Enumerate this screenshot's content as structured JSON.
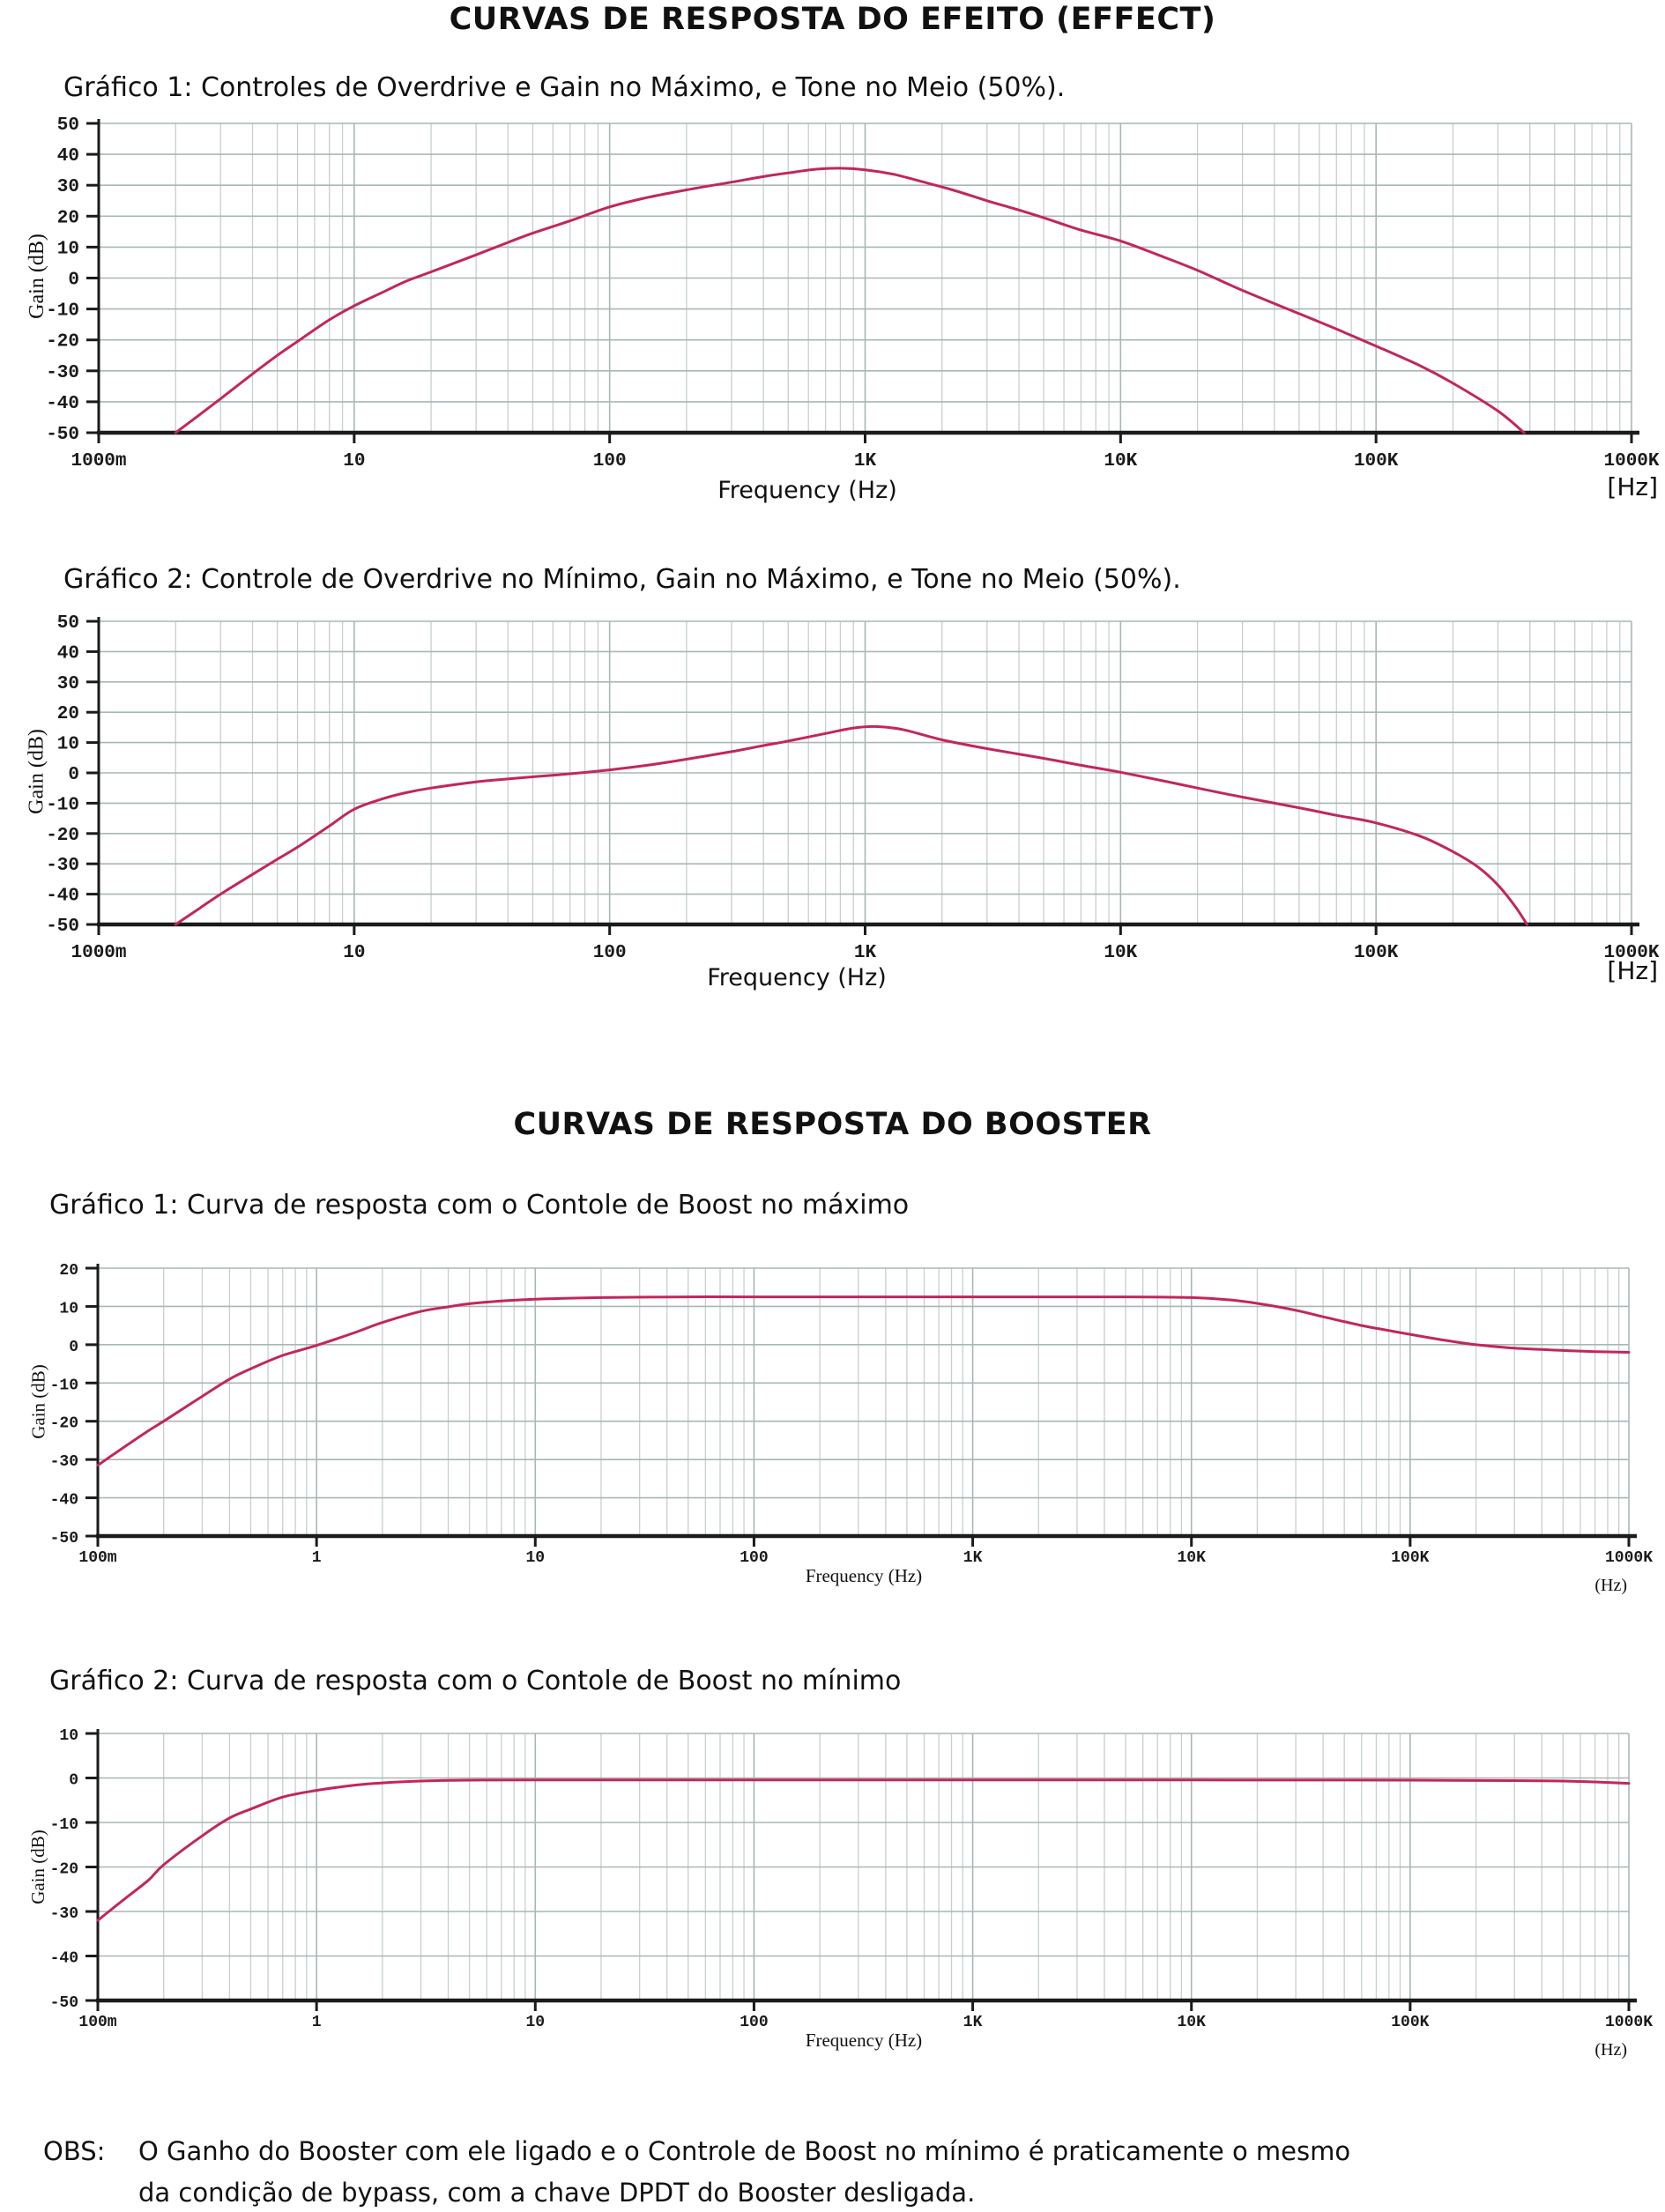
{
  "titles": {
    "effect": "CURVAS DE RESPOSTA DO EFEITO (EFFECT)",
    "booster": "CURVAS DE RESPOSTA DO BOOSTER"
  },
  "obs": {
    "label": "OBS:",
    "line1": "O Ganho do Booster com ele ligado e o Controle de Boost no mínimo é praticamente o mesmo",
    "line2": "da condição de bypass, com a chave DPDT do Booster desligada."
  },
  "colors": {
    "curve": "#c2265c",
    "grid_minor": "#c6d0ce",
    "grid_major": "#a9b7b5",
    "axis": "#1b1b1b",
    "text": "#111111"
  },
  "chart_data": [
    {
      "type": "line",
      "caption": "Gráfico 1: Controles de Overdrive e Gain no Máximo, e Tone no Meio (50%).",
      "ylabel": "Gain (dB)",
      "xlabel": "Frequency (Hz)",
      "x_unit": "[Hz]",
      "ylim": [
        -50,
        50
      ],
      "xlim_hz": [
        1,
        1000000
      ],
      "grid": true,
      "yticks": [
        {
          "db": 50,
          "label": "50"
        },
        {
          "db": 40,
          "label": "40"
        },
        {
          "db": 30,
          "label": "30"
        },
        {
          "db": 20,
          "label": "20"
        },
        {
          "db": 10,
          "label": "10"
        },
        {
          "db": 0,
          "label": "0"
        },
        {
          "db": -10,
          "label": "-10"
        },
        {
          "db": -20,
          "label": "-20"
        },
        {
          "db": -30,
          "label": "-30"
        },
        {
          "db": -40,
          "label": "-40"
        },
        {
          "db": -50,
          "label": "-50"
        }
      ],
      "xticks": [
        {
          "hz": 1,
          "label": "1000m"
        },
        {
          "hz": 10,
          "label": "10"
        },
        {
          "hz": 100,
          "label": "100"
        },
        {
          "hz": 1000,
          "label": "1K"
        },
        {
          "hz": 10000,
          "label": "10K"
        },
        {
          "hz": 100000,
          "label": "100K"
        },
        {
          "hz": 1000000,
          "label": "1000K"
        }
      ],
      "series": [
        {
          "name": "gain-response",
          "points": [
            [
              2,
              -50
            ],
            [
              2.5,
              -44
            ],
            [
              3,
              -39
            ],
            [
              4,
              -31
            ],
            [
              5,
              -25
            ],
            [
              6,
              -20.5
            ],
            [
              8,
              -13.5
            ],
            [
              10,
              -9
            ],
            [
              13,
              -4.5
            ],
            [
              16,
              -1
            ],
            [
              20,
              2
            ],
            [
              30,
              7.5
            ],
            [
              40,
              11.5
            ],
            [
              50,
              14.5
            ],
            [
              70,
              18.5
            ],
            [
              100,
              23
            ],
            [
              140,
              26
            ],
            [
              200,
              28.5
            ],
            [
              300,
              31
            ],
            [
              400,
              32.8
            ],
            [
              500,
              34
            ],
            [
              650,
              35.2
            ],
            [
              800,
              35.5
            ],
            [
              1000,
              35
            ],
            [
              1300,
              33.5
            ],
            [
              1700,
              31
            ],
            [
              2200,
              28.5
            ],
            [
              3000,
              25
            ],
            [
              4000,
              22
            ],
            [
              5000,
              19.5
            ],
            [
              7000,
              15.5
            ],
            [
              10000,
              12
            ],
            [
              14000,
              7.5
            ],
            [
              20000,
              2.5
            ],
            [
              30000,
              -4
            ],
            [
              50000,
              -11.5
            ],
            [
              70000,
              -16.5
            ],
            [
              100000,
              -22
            ],
            [
              150000,
              -28.5
            ],
            [
              200000,
              -34
            ],
            [
              300000,
              -43
            ],
            [
              380000,
              -50
            ]
          ]
        }
      ]
    },
    {
      "type": "line",
      "caption": "Gráfico 2: Controle de Overdrive no Mínimo, Gain no Máximo, e Tone no Meio (50%).",
      "ylabel": "Gain (dB)",
      "xlabel": "Frequency (Hz)",
      "x_unit": "[Hz]",
      "ylim": [
        -50,
        50
      ],
      "xlim_hz": [
        1,
        1000000
      ],
      "grid": true,
      "yticks": [
        {
          "db": 50,
          "label": "50"
        },
        {
          "db": 40,
          "label": "40"
        },
        {
          "db": 30,
          "label": "30"
        },
        {
          "db": 20,
          "label": "20"
        },
        {
          "db": 10,
          "label": "10"
        },
        {
          "db": 0,
          "label": "0"
        },
        {
          "db": -10,
          "label": "-10"
        },
        {
          "db": -20,
          "label": "-20"
        },
        {
          "db": -30,
          "label": "-30"
        },
        {
          "db": -40,
          "label": "-40"
        },
        {
          "db": -50,
          "label": "-50"
        }
      ],
      "xticks": [
        {
          "hz": 1,
          "label": "1000m"
        },
        {
          "hz": 10,
          "label": "10"
        },
        {
          "hz": 100,
          "label": "100"
        },
        {
          "hz": 1000,
          "label": "1K"
        },
        {
          "hz": 10000,
          "label": "10K"
        },
        {
          "hz": 100000,
          "label": "100K"
        },
        {
          "hz": 1000000,
          "label": "1000K"
        }
      ],
      "series": [
        {
          "name": "gain-response",
          "points": [
            [
              2,
              -50
            ],
            [
              2.5,
              -44.5
            ],
            [
              3,
              -40
            ],
            [
              4,
              -33.5
            ],
            [
              5,
              -28.5
            ],
            [
              6,
              -24.5
            ],
            [
              8,
              -17.5
            ],
            [
              10,
              -12
            ],
            [
              13,
              -8.5
            ],
            [
              16,
              -6.5
            ],
            [
              20,
              -5
            ],
            [
              30,
              -3
            ],
            [
              40,
              -2
            ],
            [
              50,
              -1.3
            ],
            [
              70,
              -0.3
            ],
            [
              100,
              1
            ],
            [
              140,
              2.5
            ],
            [
              200,
              4.5
            ],
            [
              300,
              7
            ],
            [
              400,
              9
            ],
            [
              500,
              10.5
            ],
            [
              700,
              13
            ],
            [
              900,
              14.8
            ],
            [
              1100,
              15.3
            ],
            [
              1400,
              14.3
            ],
            [
              2000,
              10.9
            ],
            [
              3000,
              8
            ],
            [
              5000,
              4.8
            ],
            [
              7000,
              2.5
            ],
            [
              10000,
              0.2
            ],
            [
              15000,
              -2.8
            ],
            [
              20000,
              -5
            ],
            [
              30000,
              -8
            ],
            [
              50000,
              -11.5
            ],
            [
              70000,
              -14
            ],
            [
              100000,
              -16.5
            ],
            [
              150000,
              -21
            ],
            [
              200000,
              -26
            ],
            [
              250000,
              -31
            ],
            [
              300000,
              -37
            ],
            [
              350000,
              -44
            ],
            [
              390000,
              -50
            ]
          ]
        }
      ]
    },
    {
      "type": "line",
      "caption": "Gráfico 1: Curva de resposta com o Contole de Boost no máximo",
      "ylabel": "Gain (dB)",
      "xlabel": "Frequency (Hz)",
      "x_unit": "(Hz)",
      "ylim": [
        -50,
        20
      ],
      "xlim_hz": [
        0.1,
        1000000
      ],
      "grid": true,
      "yticks": [
        {
          "db": 20,
          "label": "20"
        },
        {
          "db": 10,
          "label": "10"
        },
        {
          "db": 0,
          "label": "0"
        },
        {
          "db": -10,
          "label": "-10"
        },
        {
          "db": -20,
          "label": "-20"
        },
        {
          "db": -30,
          "label": "-30"
        },
        {
          "db": -40,
          "label": "-40"
        },
        {
          "db": -50,
          "label": "-50"
        }
      ],
      "xticks": [
        {
          "hz": 0.1,
          "label": "100m"
        },
        {
          "hz": 1,
          "label": "1"
        },
        {
          "hz": 10,
          "label": "10"
        },
        {
          "hz": 100,
          "label": "100"
        },
        {
          "hz": 1000,
          "label": "1K"
        },
        {
          "hz": 10000,
          "label": "10K"
        },
        {
          "hz": 100000,
          "label": "100K"
        },
        {
          "hz": 1000000,
          "label": "1000K"
        }
      ],
      "series": [
        {
          "name": "boost-max",
          "points": [
            [
              0.1,
              -31.5
            ],
            [
              0.13,
              -27
            ],
            [
              0.17,
              -22.5
            ],
            [
              0.2,
              -20
            ],
            [
              0.3,
              -13.5
            ],
            [
              0.4,
              -9
            ],
            [
              0.5,
              -6.3
            ],
            [
              0.7,
              -2.8
            ],
            [
              1,
              -0.2
            ],
            [
              1.5,
              3.2
            ],
            [
              2,
              5.8
            ],
            [
              3,
              8.7
            ],
            [
              4,
              9.9
            ],
            [
              5,
              10.7
            ],
            [
              7,
              11.4
            ],
            [
              10,
              11.9
            ],
            [
              20,
              12.3
            ],
            [
              50,
              12.5
            ],
            [
              100,
              12.5
            ],
            [
              1000,
              12.5
            ],
            [
              5000,
              12.5
            ],
            [
              10000,
              12.3
            ],
            [
              15000,
              11.7
            ],
            [
              20000,
              10.8
            ],
            [
              30000,
              9
            ],
            [
              40000,
              7.3
            ],
            [
              60000,
              5
            ],
            [
              80000,
              3.7
            ],
            [
              100000,
              2.7
            ],
            [
              150000,
              1
            ],
            [
              200000,
              0
            ],
            [
              300000,
              -0.9
            ],
            [
              500000,
              -1.5
            ],
            [
              700000,
              -1.8
            ],
            [
              1000000,
              -2
            ]
          ]
        }
      ]
    },
    {
      "type": "line",
      "caption": "Gráfico 2: Curva de resposta com o Contole de Boost no mínimo",
      "ylabel": "Gain (dB)",
      "xlabel": "Frequency (Hz)",
      "x_unit": "(Hz)",
      "ylim": [
        -50,
        10
      ],
      "xlim_hz": [
        0.1,
        1000000
      ],
      "grid": true,
      "yticks": [
        {
          "db": 10,
          "label": "10"
        },
        {
          "db": 0,
          "label": "0"
        },
        {
          "db": -10,
          "label": "-10"
        },
        {
          "db": -20,
          "label": "-20"
        },
        {
          "db": -30,
          "label": "-30"
        },
        {
          "db": -40,
          "label": "-40"
        },
        {
          "db": -50,
          "label": "-50"
        }
      ],
      "xticks": [
        {
          "hz": 0.1,
          "label": "100m"
        },
        {
          "hz": 1,
          "label": "1"
        },
        {
          "hz": 10,
          "label": "10"
        },
        {
          "hz": 100,
          "label": "100"
        },
        {
          "hz": 1000,
          "label": "1K"
        },
        {
          "hz": 10000,
          "label": "10K"
        },
        {
          "hz": 100000,
          "label": "100K"
        },
        {
          "hz": 1000000,
          "label": "1000K"
        }
      ],
      "series": [
        {
          "name": "boost-min",
          "points": [
            [
              0.1,
              -32
            ],
            [
              0.13,
              -27.5
            ],
            [
              0.17,
              -23
            ],
            [
              0.2,
              -19.5
            ],
            [
              0.3,
              -13
            ],
            [
              0.4,
              -9
            ],
            [
              0.5,
              -7
            ],
            [
              0.7,
              -4.3
            ],
            [
              1,
              -2.8
            ],
            [
              1.5,
              -1.6
            ],
            [
              2,
              -1.1
            ],
            [
              3,
              -0.7
            ],
            [
              5,
              -0.5
            ],
            [
              10,
              -0.45
            ],
            [
              100,
              -0.45
            ],
            [
              1000,
              -0.45
            ],
            [
              10000,
              -0.45
            ],
            [
              100000,
              -0.5
            ],
            [
              300000,
              -0.6
            ],
            [
              500000,
              -0.7
            ],
            [
              700000,
              -0.9
            ],
            [
              1000000,
              -1.2
            ]
          ]
        }
      ]
    }
  ]
}
